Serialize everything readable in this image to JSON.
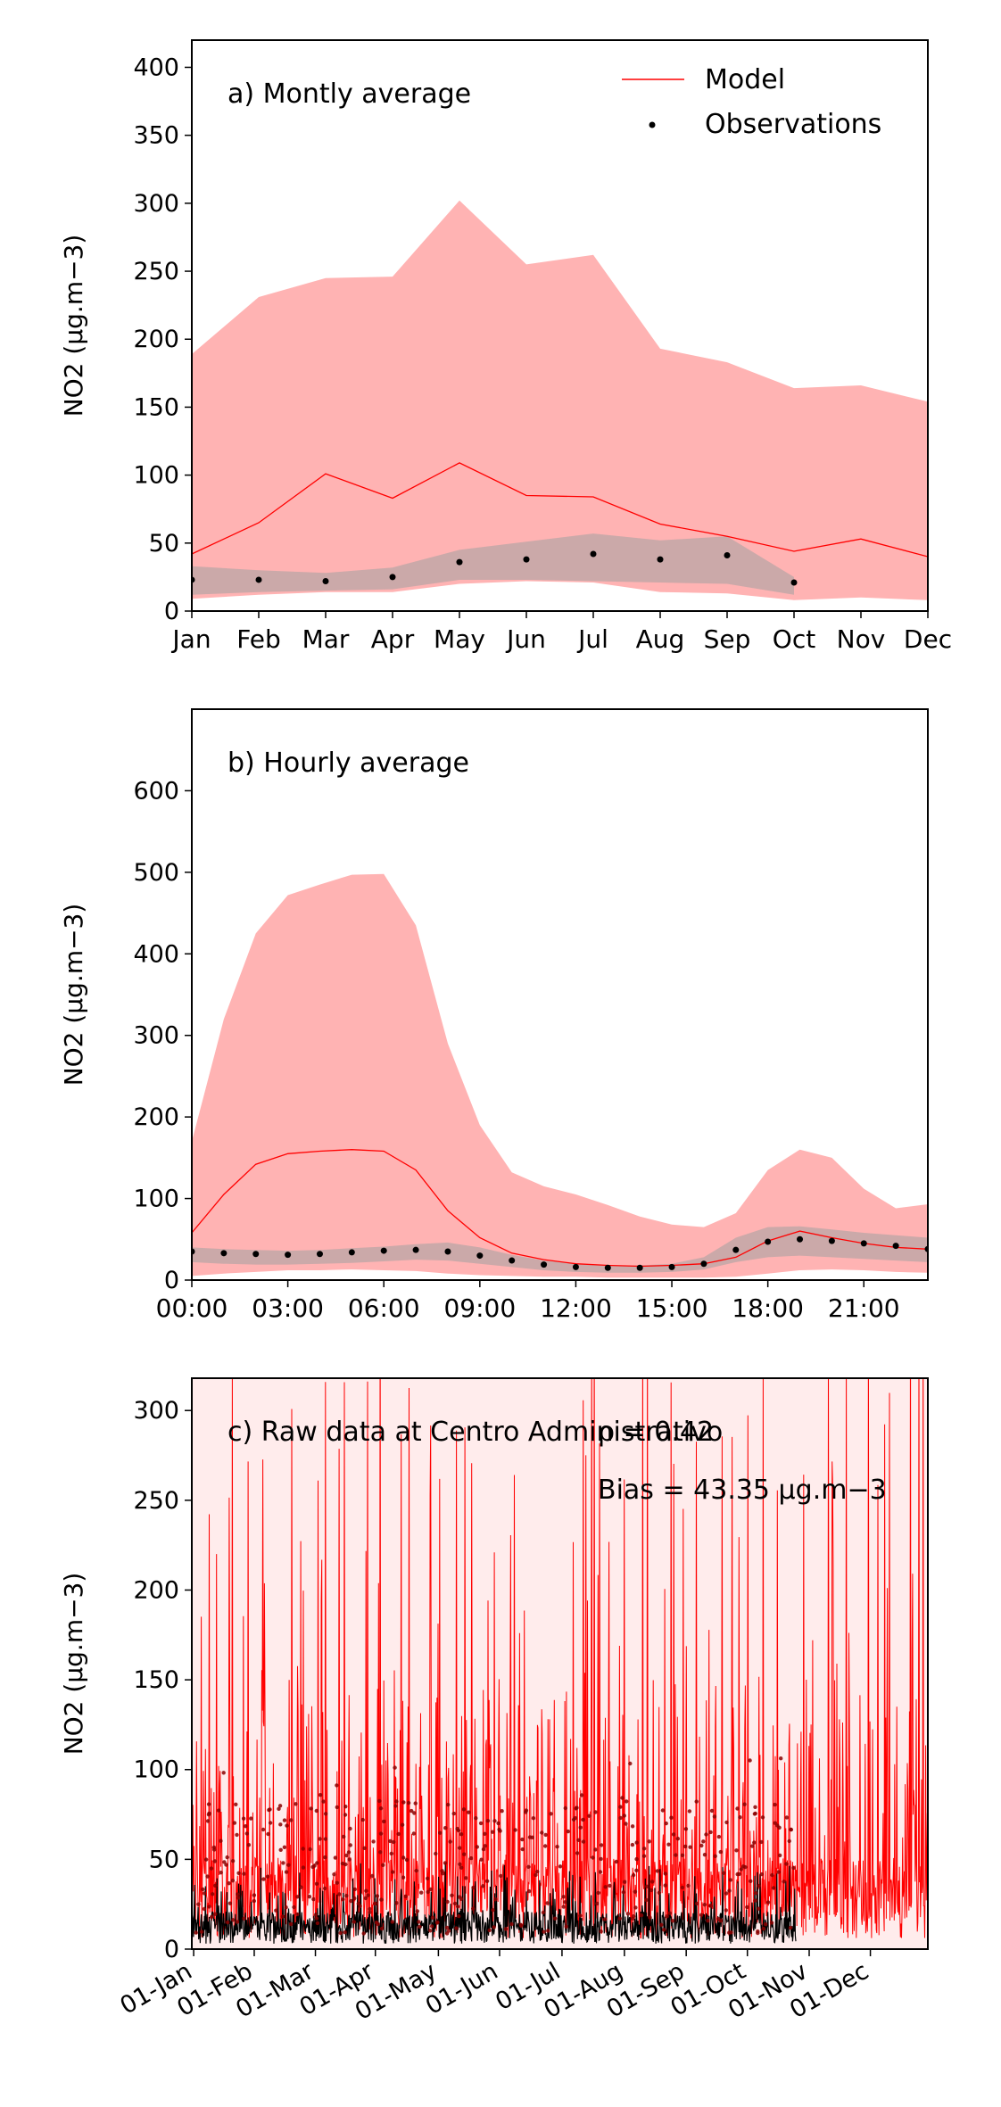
{
  "colors": {
    "model": "#ff0000",
    "model_band": "#ffb3b3",
    "model_band_raw": "#ffe0e0",
    "obs": "#000000",
    "obs_band": "#a0a0a0"
  },
  "chart_data": [
    {
      "id": "monthly",
      "type": "line",
      "annotation": "a) Montly average",
      "ylabel": "NO2 (μg.m−3)",
      "ylim": [
        0,
        420
      ],
      "yticks": [
        0,
        50,
        100,
        150,
        200,
        250,
        300,
        350,
        400
      ],
      "xlim": [
        0,
        11
      ],
      "categories": [
        "Jan",
        "Feb",
        "Mar",
        "Apr",
        "May",
        "Jun",
        "Jul",
        "Aug",
        "Sep",
        "Oct",
        "Nov",
        "Dec"
      ],
      "legend": {
        "position": "top-right",
        "entries": [
          "Model",
          "Observations"
        ]
      },
      "model": {
        "name": "Model",
        "mean": [
          42,
          65,
          101,
          83,
          109,
          85,
          84,
          64,
          55,
          44,
          53,
          40
        ],
        "upper": [
          189,
          231,
          245,
          246,
          302,
          255,
          262,
          193,
          183,
          164,
          166,
          154
        ],
        "lower": [
          9,
          12,
          14,
          14,
          20,
          22,
          21,
          14,
          13,
          8,
          10,
          8
        ]
      },
      "observations": {
        "name": "Observations",
        "x": [
          0,
          1,
          2,
          3,
          4,
          5,
          6,
          7,
          8,
          9
        ],
        "mean": [
          23,
          23,
          22,
          25,
          36,
          38,
          42,
          38,
          41,
          21
        ],
        "upper": [
          33,
          30,
          28,
          32,
          45,
          51,
          57,
          52,
          55,
          25
        ],
        "lower": [
          12,
          14,
          15,
          16,
          23,
          23,
          22,
          21,
          20,
          12
        ]
      }
    },
    {
      "id": "hourly",
      "type": "line",
      "annotation": "b) Hourly average",
      "ylabel": "NO2 (μg.m−3)",
      "ylim": [
        0,
        700
      ],
      "yticks": [
        0,
        100,
        200,
        300,
        400,
        500,
        600
      ],
      "xlim": [
        0,
        23
      ],
      "xticks": [
        0,
        3,
        6,
        9,
        12,
        15,
        18,
        21
      ],
      "xticklabels": [
        "00:00",
        "03:00",
        "06:00",
        "09:00",
        "12:00",
        "15:00",
        "18:00",
        "21:00"
      ],
      "model": {
        "x": [
          0,
          1,
          2,
          3,
          4,
          5,
          6,
          7,
          8,
          9,
          10,
          11,
          12,
          13,
          14,
          15,
          16,
          17,
          18,
          19,
          20,
          21,
          22,
          23
        ],
        "mean": [
          58,
          105,
          142,
          155,
          158,
          160,
          158,
          135,
          85,
          52,
          33,
          25,
          20,
          18,
          17,
          18,
          20,
          28,
          48,
          60,
          52,
          45,
          40,
          38
        ],
        "upper": [
          170,
          320,
          425,
          472,
          485,
          497,
          498,
          435,
          290,
          190,
          132,
          115,
          105,
          92,
          78,
          68,
          65,
          82,
          135,
          160,
          150,
          112,
          88,
          93
        ],
        "lower": [
          5,
          8,
          10,
          12,
          12,
          13,
          12,
          11,
          8,
          6,
          5,
          4,
          4,
          3,
          3,
          3,
          3,
          4,
          8,
          12,
          13,
          12,
          10,
          9
        ]
      },
      "observations": {
        "x": [
          0,
          1,
          2,
          3,
          4,
          5,
          6,
          7,
          8,
          9,
          10,
          11,
          12,
          13,
          14,
          15,
          16,
          17,
          18,
          19,
          20,
          21,
          22,
          23
        ],
        "mean": [
          35,
          33,
          32,
          31,
          32,
          34,
          36,
          37,
          35,
          30,
          24,
          19,
          16,
          15,
          15,
          16,
          20,
          37,
          47,
          50,
          48,
          45,
          42,
          38
        ],
        "upper": [
          40,
          38,
          37,
          36,
          37,
          39,
          41,
          44,
          46,
          40,
          31,
          24,
          20,
          18,
          18,
          20,
          28,
          52,
          65,
          66,
          62,
          58,
          55,
          52
        ],
        "lower": [
          22,
          20,
          19,
          19,
          20,
          21,
          23,
          25,
          24,
          20,
          16,
          12,
          10,
          9,
          9,
          10,
          13,
          22,
          28,
          30,
          28,
          26,
          24,
          22
        ]
      }
    },
    {
      "id": "raw",
      "type": "line",
      "annotation": "c) Raw data at Centro Administrativo",
      "stats": [
        "ρ = 0.42",
        "Bias = 43.35 μg.m−3"
      ],
      "ylabel": "NO2 (μg.m−3)",
      "ylim": [
        0,
        318
      ],
      "yticks": [
        0,
        50,
        100,
        150,
        200,
        250,
        300
      ],
      "xlim": [
        -0.03,
        11.88
      ],
      "xticks": [
        0,
        0.98,
        1.97,
        2.94,
        3.96,
        4.95,
        5.96,
        6.97,
        7.97,
        8.96,
        9.96,
        10.95
      ],
      "xticklabels": [
        "01-Jan",
        "01-Feb",
        "01-Mar",
        "01-Apr",
        "01-May",
        "01-Jun",
        "01-Jul",
        "01-Aug",
        "01-Sep",
        "01-Oct",
        "01-Nov",
        "01-Dec"
      ],
      "observation_end": 9.75
    }
  ]
}
